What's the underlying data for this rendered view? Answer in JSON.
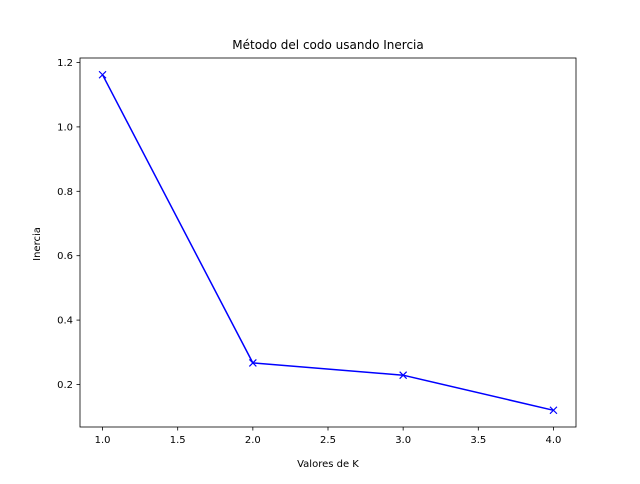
{
  "chart_data": {
    "type": "line",
    "title": "Método del codo usando Inercia",
    "xlabel": "Valores de K",
    "ylabel": "Inercia",
    "x": [
      1.0,
      2.0,
      3.0,
      4.0
    ],
    "series": [
      {
        "values": [
          1.162,
          0.267,
          0.229,
          0.12
        ],
        "color": "#0000ff",
        "marker": "x"
      }
    ],
    "xlim": [
      0.85,
      4.15
    ],
    "ylim": [
      0.068,
      1.214
    ],
    "xticks": [
      1.0,
      1.5,
      2.0,
      2.5,
      3.0,
      3.5,
      4.0
    ],
    "xtick_labels": [
      "1.0",
      "1.5",
      "2.0",
      "2.5",
      "3.0",
      "3.5",
      "4.0"
    ],
    "yticks": [
      0.2,
      0.4,
      0.6,
      0.8,
      1.0,
      1.2
    ],
    "ytick_labels": [
      "0.2",
      "0.4",
      "0.6",
      "0.8",
      "1.0",
      "1.2"
    ],
    "grid": false,
    "legend": "none"
  }
}
